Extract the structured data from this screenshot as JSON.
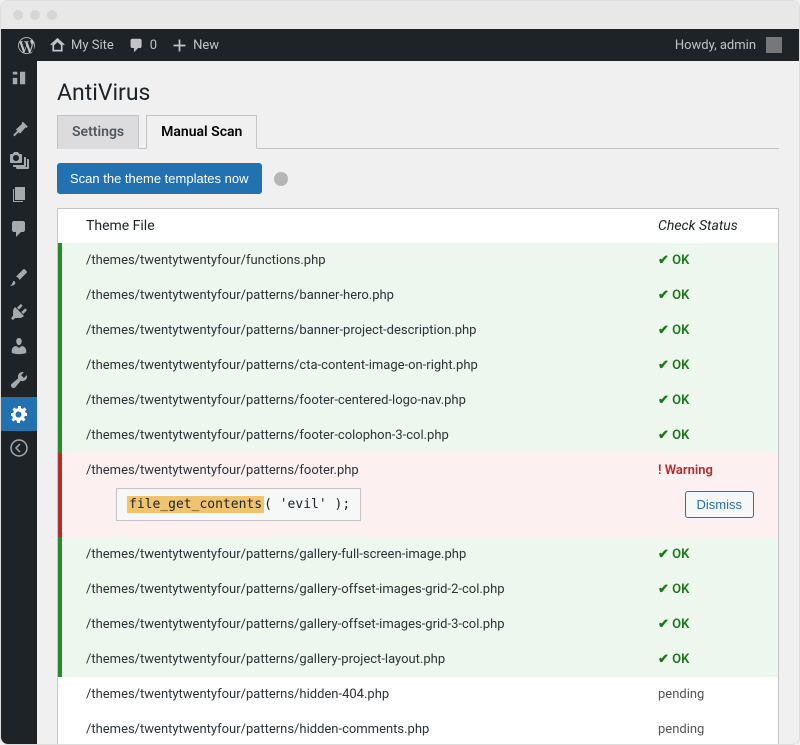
{
  "adminbar": {
    "site_name": "My Site",
    "comment_count": "0",
    "new_label": "New",
    "greeting": "Howdy, admin"
  },
  "page": {
    "title": "AntiVirus"
  },
  "tabs": {
    "settings": "Settings",
    "manual_scan": "Manual Scan"
  },
  "actions": {
    "scan_button": "Scan the theme templates now",
    "dismiss": "Dismiss"
  },
  "table": {
    "header_file": "Theme File",
    "header_status": "Check Status",
    "status_ok": "✔ OK",
    "status_warning": "! Warning",
    "status_pending": "pending"
  },
  "warning_code": {
    "highlight": "file_get_contents",
    "rest": "( 'evil' );"
  },
  "rows": [
    {
      "path": "/themes/twentytwentyfour/functions.php",
      "status": "ok"
    },
    {
      "path": "/themes/twentytwentyfour/patterns/banner-hero.php",
      "status": "ok"
    },
    {
      "path": "/themes/twentytwentyfour/patterns/banner-project-description.php",
      "status": "ok"
    },
    {
      "path": "/themes/twentytwentyfour/patterns/cta-content-image-on-right.php",
      "status": "ok"
    },
    {
      "path": "/themes/twentytwentyfour/patterns/footer-centered-logo-nav.php",
      "status": "ok"
    },
    {
      "path": "/themes/twentytwentyfour/patterns/footer-colophon-3-col.php",
      "status": "ok"
    },
    {
      "path": "/themes/twentytwentyfour/patterns/footer.php",
      "status": "warn"
    },
    {
      "path": "/themes/twentytwentyfour/patterns/gallery-full-screen-image.php",
      "status": "ok"
    },
    {
      "path": "/themes/twentytwentyfour/patterns/gallery-offset-images-grid-2-col.php",
      "status": "ok"
    },
    {
      "path": "/themes/twentytwentyfour/patterns/gallery-offset-images-grid-3-col.php",
      "status": "ok"
    },
    {
      "path": "/themes/twentytwentyfour/patterns/gallery-project-layout.php",
      "status": "ok"
    },
    {
      "path": "/themes/twentytwentyfour/patterns/hidden-404.php",
      "status": "pending"
    },
    {
      "path": "/themes/twentytwentyfour/patterns/hidden-comments.php",
      "status": "pending"
    }
  ],
  "colors": {
    "primary": "#2271b1",
    "ok_green": "#1a7a1a",
    "ok_bg": "#edf7ed",
    "warn_red": "#b32d2e",
    "warn_bg": "#fcf0f1",
    "admin_dark": "#1d2327"
  }
}
